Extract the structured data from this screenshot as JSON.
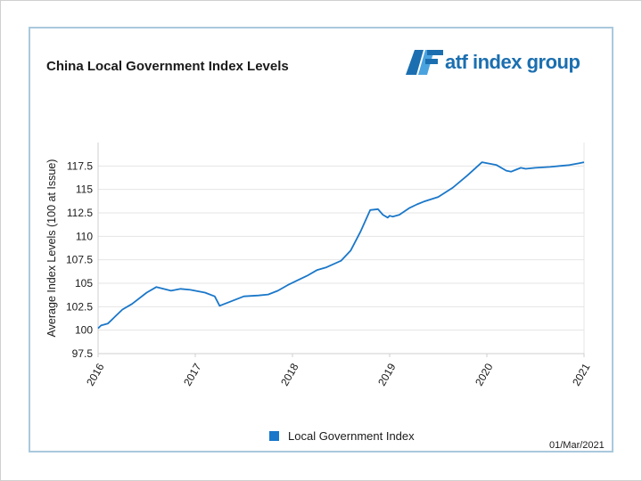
{
  "header": {
    "title": "China Local Government Index Levels",
    "logo_text": "atf index group"
  },
  "legend": {
    "label": "Local Government Index"
  },
  "footer": {
    "date": "01/Mar/2021"
  },
  "colors": {
    "line": "#1a77c9",
    "grid": "#e4e4e4",
    "accent": "#1b6fb0",
    "border": "#a9c9dd"
  },
  "icons": {
    "logo": "atf-logo-icon"
  },
  "chart_data": {
    "type": "line",
    "title": "China Local Government Index Levels",
    "xlabel": "",
    "ylabel": "Average Index Levels (100 at Issue)",
    "xlim": [
      2016,
      2021
    ],
    "ylim": [
      97.5,
      120
    ],
    "x_ticks": [
      "2016",
      "2017",
      "2018",
      "2019",
      "2020",
      "2021"
    ],
    "y_ticks": [
      "97.5",
      "100",
      "102.5",
      "105",
      "107.5",
      "110",
      "112.5",
      "115",
      "117.5"
    ],
    "grid": true,
    "legend_position": "bottom",
    "series": [
      {
        "name": "Local Government Index",
        "x": [
          2016.0,
          2016.03,
          2016.1,
          2016.18,
          2016.25,
          2016.35,
          2016.5,
          2016.6,
          2016.75,
          2016.85,
          2016.95,
          2017.1,
          2017.2,
          2017.25,
          2017.3,
          2017.5,
          2017.65,
          2017.75,
          2017.85,
          2017.95,
          2018.05,
          2018.15,
          2018.25,
          2018.35,
          2018.5,
          2018.6,
          2018.7,
          2018.8,
          2018.88,
          2018.93,
          2018.98,
          2019.0,
          2019.03,
          2019.1,
          2019.2,
          2019.28,
          2019.35,
          2019.5,
          2019.65,
          2019.8,
          2019.95,
          2020.1,
          2020.2,
          2020.25,
          2020.3,
          2020.35,
          2020.4,
          2020.5,
          2020.65,
          2020.75,
          2020.85,
          2020.95,
          2021.0
        ],
        "values": [
          100.2,
          100.5,
          100.7,
          101.5,
          102.2,
          102.8,
          104.0,
          104.6,
          104.2,
          104.4,
          104.3,
          104.0,
          103.6,
          102.6,
          102.8,
          103.6,
          103.7,
          103.8,
          104.2,
          104.8,
          105.3,
          105.8,
          106.4,
          106.7,
          107.4,
          108.5,
          110.5,
          112.8,
          112.9,
          112.3,
          112.0,
          112.2,
          112.1,
          112.3,
          113.0,
          113.4,
          113.7,
          114.2,
          115.2,
          116.5,
          117.9,
          117.6,
          117.0,
          116.9,
          117.1,
          117.3,
          117.2,
          117.3,
          117.4,
          117.5,
          117.6,
          117.8,
          117.9
        ]
      }
    ]
  }
}
